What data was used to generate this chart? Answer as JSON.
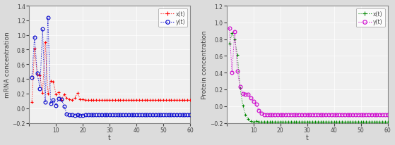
{
  "left": {
    "xlabel": "t",
    "ylabel": "mRNA concentration",
    "xlim": [
      0,
      60
    ],
    "ylim": [
      -0.2,
      1.4
    ],
    "yticks": [
      -0.2,
      0.0,
      0.2,
      0.4,
      0.6,
      0.8,
      1.0,
      1.2,
      1.4
    ],
    "xticks": [
      0,
      10,
      20,
      30,
      40,
      50,
      60
    ],
    "x_color": "#FF0000",
    "y_color": "#0000CC",
    "legend_labels": [
      "x(t)",
      "y(t)"
    ],
    "lx_vals": [
      0.08,
      0.81,
      0.46,
      0.45,
      0.21,
      0.9,
      0.2,
      0.37,
      0.36,
      0.19,
      0.22,
      0.11,
      0.19,
      0.14,
      0.12,
      0.11,
      0.14,
      0.21,
      0.12,
      0.12,
      0.11,
      0.11,
      0.11,
      0.11,
      0.11,
      0.11,
      0.11,
      0.11,
      0.11,
      0.11,
      0.11,
      0.11,
      0.11,
      0.11,
      0.11,
      0.11,
      0.11,
      0.11,
      0.11,
      0.11,
      0.11,
      0.11,
      0.11,
      0.11,
      0.11,
      0.11,
      0.11,
      0.11,
      0.11,
      0.11,
      0.11,
      0.11,
      0.11,
      0.11,
      0.11,
      0.11,
      0.11,
      0.11,
      0.11,
      0.11
    ],
    "ly_vals": [
      0.42,
      0.97,
      0.48,
      0.27,
      1.08,
      0.08,
      1.24,
      0.06,
      0.11,
      0.04,
      0.13,
      0.12,
      0.03,
      -0.08,
      -0.09,
      -0.09,
      -0.1,
      -0.09,
      -0.1,
      -0.1,
      -0.09,
      -0.09,
      -0.09,
      -0.09,
      -0.09,
      -0.09,
      -0.09,
      -0.09,
      -0.09,
      -0.09,
      -0.09,
      -0.09,
      -0.09,
      -0.09,
      -0.09,
      -0.09,
      -0.09,
      -0.09,
      -0.09,
      -0.09,
      -0.09,
      -0.09,
      -0.09,
      -0.09,
      -0.09,
      -0.09,
      -0.09,
      -0.09,
      -0.09,
      -0.09,
      -0.09,
      -0.09,
      -0.09,
      -0.09,
      -0.09,
      -0.09,
      -0.09,
      -0.09,
      -0.09,
      -0.09
    ]
  },
  "right": {
    "xlabel": "t",
    "ylabel": "Protein concentration",
    "xlim": [
      0,
      60
    ],
    "ylim": [
      -0.2,
      1.2
    ],
    "yticks": [
      -0.2,
      0.0,
      0.2,
      0.4,
      0.6,
      0.8,
      1.0,
      1.2
    ],
    "xticks": [
      0,
      10,
      20,
      30,
      40,
      50,
      60
    ],
    "x_color": "#008800",
    "y_color": "#CC00CC",
    "legend_labels": [
      "x(t)",
      "y(t)"
    ],
    "rx_vals": [
      0.75,
      0.87,
      0.8,
      0.61,
      0.22,
      0.01,
      -0.1,
      -0.15,
      -0.18,
      -0.19,
      -0.18,
      -0.19,
      -0.19,
      -0.19,
      -0.19,
      -0.19,
      -0.19,
      -0.19,
      -0.19,
      -0.19,
      -0.19,
      -0.19,
      -0.19,
      -0.19,
      -0.19,
      -0.19,
      -0.19,
      -0.19,
      -0.19,
      -0.19,
      -0.19,
      -0.19,
      -0.19,
      -0.19,
      -0.19,
      -0.19,
      -0.19,
      -0.19,
      -0.19,
      -0.19,
      -0.19,
      -0.19,
      -0.19,
      -0.19,
      -0.19,
      -0.19,
      -0.19,
      -0.19,
      -0.19,
      -0.19,
      -0.19,
      -0.19,
      -0.19,
      -0.19,
      -0.19,
      -0.19,
      -0.19,
      -0.19,
      -0.19,
      -0.19
    ],
    "ry_vals": [
      0.93,
      0.4,
      0.89,
      0.42,
      0.23,
      0.15,
      0.14,
      0.14,
      0.1,
      0.06,
      0.02,
      -0.05,
      -0.09,
      -0.1,
      -0.1,
      -0.1,
      -0.1,
      -0.1,
      -0.1,
      -0.1,
      -0.1,
      -0.1,
      -0.1,
      -0.1,
      -0.1,
      -0.1,
      -0.1,
      -0.1,
      -0.1,
      -0.1,
      -0.1,
      -0.1,
      -0.1,
      -0.1,
      -0.1,
      -0.1,
      -0.1,
      -0.1,
      -0.1,
      -0.1,
      -0.1,
      -0.1,
      -0.1,
      -0.1,
      -0.1,
      -0.1,
      -0.1,
      -0.1,
      -0.1,
      -0.1,
      -0.1,
      -0.1,
      -0.1,
      -0.1,
      -0.1,
      -0.1,
      -0.1,
      -0.1,
      -0.1,
      -0.1
    ]
  },
  "bg_color": "#F0F0F0",
  "fig_bg": "#DCDCDC"
}
